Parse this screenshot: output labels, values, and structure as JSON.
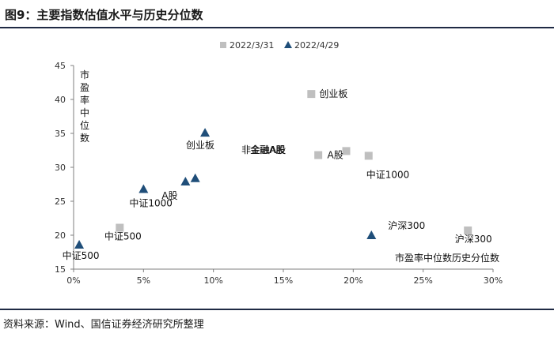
{
  "header": {
    "title": "图9：主要指数估值水平与历史分位数"
  },
  "footer": {
    "source": "资料来源：Wind、国信证券经济研究所整理"
  },
  "colors": {
    "series_2022_03_31": "#bfbfbf",
    "series_2022_04_29": "#1f4e79"
  },
  "chart_data": {
    "type": "scatter",
    "title": "",
    "xlabel": "市盈率中位数历史分位数",
    "ylabel": "市盈率中位数",
    "xlim": [
      0,
      30
    ],
    "ylim": [
      15,
      45
    ],
    "xticks": [
      "0%",
      "5%",
      "10%",
      "15%",
      "20%",
      "25%",
      "30%"
    ],
    "yticks": [
      "15",
      "20",
      "25",
      "30",
      "35",
      "40",
      "45"
    ],
    "legend_position": "top",
    "grid": false,
    "series": [
      {
        "name": "2022/3/31",
        "marker": "square",
        "points": [
          {
            "label": "中证500",
            "x": 3.3,
            "y": 21.1
          },
          {
            "label": "创业板",
            "x": 17.0,
            "y": 40.8
          },
          {
            "label": "",
            "x": 17.5,
            "y": 31.8
          },
          {
            "label": "A股",
            "x": 19.5,
            "y": 32.4
          },
          {
            "label": "中证1000",
            "x": 21.1,
            "y": 31.7
          },
          {
            "label": "沪深300",
            "x": 28.2,
            "y": 20.7
          }
        ]
      },
      {
        "name": "2022/4/29",
        "marker": "triangle",
        "points": [
          {
            "label": "中证500",
            "x": 0.4,
            "y": 18.6
          },
          {
            "label": "中证1000",
            "x": 5.0,
            "y": 26.8
          },
          {
            "label": "A股",
            "x": 8.0,
            "y": 27.9
          },
          {
            "label": "",
            "x": 8.7,
            "y": 28.4
          },
          {
            "label": "创业板",
            "x": 9.4,
            "y": 35.1
          },
          {
            "label": "沪深300",
            "x": 21.3,
            "y": 20.0
          }
        ]
      }
    ],
    "annotations": [
      "非金融A股",
      "金融A股"
    ]
  }
}
